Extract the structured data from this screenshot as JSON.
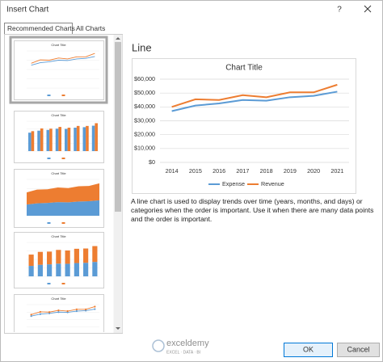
{
  "dialog": {
    "title": "Insert Chart",
    "help": "?",
    "tabs": [
      "Recommended Charts",
      "All Charts"
    ],
    "chart_name": "Line",
    "description": "A line chart is used to display trends over time (years, months, and days) or categories when the order is important. Use it when there are many data points and the order is important.",
    "buttons": [
      "OK",
      "Cancel"
    ],
    "watermark": {
      "name": "exceldemy",
      "tagline": "EXCEL · DATA · BI"
    }
  },
  "chart_data": {
    "type": "line",
    "title": "Chart Title",
    "categories": [
      "2014",
      "2015",
      "2016",
      "2017",
      "2018",
      "2019",
      "2020",
      "2021"
    ],
    "series": [
      {
        "name": "Expense",
        "color": "#5b9bd5",
        "values": [
          37000,
          41000,
          42500,
          45000,
          44500,
          47000,
          48000,
          51000
        ]
      },
      {
        "name": "Revenue",
        "color": "#ed7d31",
        "values": [
          40000,
          45500,
          45000,
          48500,
          47000,
          50500,
          50500,
          56000
        ]
      }
    ],
    "ylim": [
      0,
      60000
    ],
    "yticks": [
      {
        "value": 0,
        "label": "$0"
      },
      {
        "value": 10000,
        "label": "$10,000"
      },
      {
        "value": 20000,
        "label": "$20,000"
      },
      {
        "value": 30000,
        "label": "$30,000"
      },
      {
        "value": 40000,
        "label": "$40,000"
      },
      {
        "value": 50000,
        "label": "$50,000"
      },
      {
        "value": 60000,
        "label": "$60,000"
      }
    ],
    "grid": true,
    "legend": "bottom"
  }
}
